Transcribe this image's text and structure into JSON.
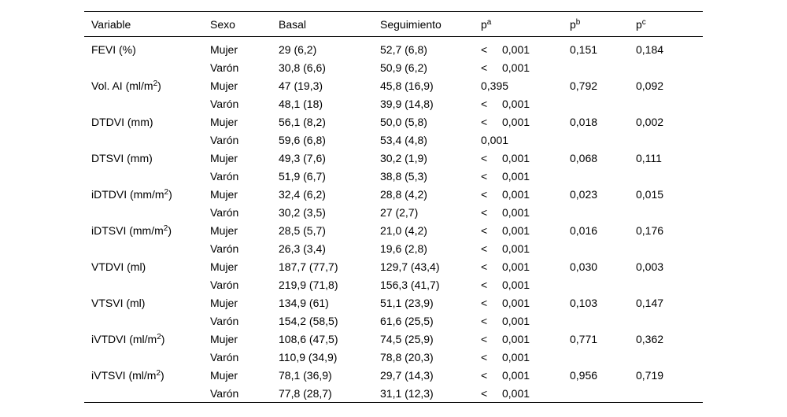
{
  "headers": {
    "variable": "Variable",
    "sexo": "Sexo",
    "basal": "Basal",
    "seguimiento": "Seguimiento",
    "pa_base": "p",
    "pa_sup": "a",
    "pb_base": "p",
    "pb_sup": "b",
    "pc_base": "p",
    "pc_sup": "c"
  },
  "rows": [
    {
      "variable": "FEVI (%)",
      "var_sup": "",
      "var_suffix": "",
      "sexo": "Mujer",
      "basal": "29 (6,2)",
      "seguimiento": "52,7 (6,8)",
      "pa_lt": "<",
      "pa": "0,001",
      "pb": "0,151",
      "pc": "0,184"
    },
    {
      "variable": "",
      "var_sup": "",
      "var_suffix": "",
      "sexo": "Varón",
      "basal": "30,8 (6,6)",
      "seguimiento": "50,9 (6,2)",
      "pa_lt": "<",
      "pa": "0,001",
      "pb": "",
      "pc": ""
    },
    {
      "variable": "Vol. AI (ml/m",
      "var_sup": "2",
      "var_suffix": ")",
      "sexo": "Mujer",
      "basal": "47 (19,3)",
      "seguimiento": "45,8 (16,9)",
      "pa_lt": "",
      "pa": "0,395",
      "pb": "0,792",
      "pc": "0,092"
    },
    {
      "variable": "",
      "var_sup": "",
      "var_suffix": "",
      "sexo": "Varón",
      "basal": "48,1 (18)",
      "seguimiento": "39,9 (14,8)",
      "pa_lt": "<",
      "pa": "0,001",
      "pb": "",
      "pc": ""
    },
    {
      "variable": "DTDVI (mm)",
      "var_sup": "",
      "var_suffix": "",
      "sexo": "Mujer",
      "basal": "56,1 (8,2)",
      "seguimiento": "50,0 (5,8)",
      "pa_lt": "<",
      "pa": "0,001",
      "pb": "0,018",
      "pc": "0,002"
    },
    {
      "variable": "",
      "var_sup": "",
      "var_suffix": "",
      "sexo": "Varón",
      "basal": "59,6 (6,8)",
      "seguimiento": "53,4 (4,8)",
      "pa_lt": "",
      "pa": "0,001",
      "pb": "",
      "pc": ""
    },
    {
      "variable": "DTSVI (mm)",
      "var_sup": "",
      "var_suffix": "",
      "sexo": "Mujer",
      "basal": "49,3 (7,6)",
      "seguimiento": "30,2 (1,9)",
      "pa_lt": "<",
      "pa": "0,001",
      "pb": "0,068",
      "pc": "0,111"
    },
    {
      "variable": "",
      "var_sup": "",
      "var_suffix": "",
      "sexo": "Varón",
      "basal": "51,9 (6,7)",
      "seguimiento": "38,8 (5,3)",
      "pa_lt": "<",
      "pa": "0,001",
      "pb": "",
      "pc": ""
    },
    {
      "variable": "iDTDVI (mm/m",
      "var_sup": "2",
      "var_suffix": ")",
      "sexo": "Mujer",
      "basal": "32,4 (6,2)",
      "seguimiento": "28,8 (4,2)",
      "pa_lt": "<",
      "pa": "0,001",
      "pb": "0,023",
      "pc": "0,015"
    },
    {
      "variable": "",
      "var_sup": "",
      "var_suffix": "",
      "sexo": "Varón",
      "basal": "30,2 (3,5)",
      "seguimiento": "27 (2,7)",
      "pa_lt": "<",
      "pa": "0,001",
      "pb": "",
      "pc": ""
    },
    {
      "variable": "iDTSVI (mm/m",
      "var_sup": "2",
      "var_suffix": ")",
      "sexo": "Mujer",
      "basal": "28,5 (5,7)",
      "seguimiento": "21,0 (4,2)",
      "pa_lt": "<",
      "pa": "0,001",
      "pb": "0,016",
      "pc": "0,176"
    },
    {
      "variable": "",
      "var_sup": "",
      "var_suffix": "",
      "sexo": "Varón",
      "basal": "26,3 (3,4)",
      "seguimiento": "19,6 (2,8)",
      "pa_lt": "<",
      "pa": "0,001",
      "pb": "",
      "pc": ""
    },
    {
      "variable": "VTDVI (ml)",
      "var_sup": "",
      "var_suffix": "",
      "sexo": "Mujer",
      "basal": "187,7 (77,7)",
      "seguimiento": "129,7 (43,4)",
      "pa_lt": "<",
      "pa": "0,001",
      "pb": "0,030",
      "pc": "0,003"
    },
    {
      "variable": "",
      "var_sup": "",
      "var_suffix": "",
      "sexo": "Varón",
      "basal": "219,9 (71,8)",
      "seguimiento": "156,3 (41,7)",
      "pa_lt": "<",
      "pa": "0,001",
      "pb": "",
      "pc": ""
    },
    {
      "variable": "VTSVI (ml)",
      "var_sup": "",
      "var_suffix": "",
      "sexo": "Mujer",
      "basal": "134,9 (61)",
      "seguimiento": "51,1 (23,9)",
      "pa_lt": "<",
      "pa": "0,001",
      "pb": "0,103",
      "pc": "0,147"
    },
    {
      "variable": "",
      "var_sup": "",
      "var_suffix": "",
      "sexo": "Varón",
      "basal": "154,2 (58,5)",
      "seguimiento": "61,6 (25,5)",
      "pa_lt": "<",
      "pa": "0,001",
      "pb": "",
      "pc": ""
    },
    {
      "variable": "iVTDVI (ml/m",
      "var_sup": "2",
      "var_suffix": ")",
      "sexo": "Mujer",
      "basal": "108,6 (47,5)",
      "seguimiento": "74,5 (25,9)",
      "pa_lt": "<",
      "pa": "0,001",
      "pb": "0,771",
      "pc": "0,362"
    },
    {
      "variable": "",
      "var_sup": "",
      "var_suffix": "",
      "sexo": "Varón",
      "basal": "110,9 (34,9)",
      "seguimiento": "78,8 (20,3)",
      "pa_lt": "<",
      "pa": "0,001",
      "pb": "",
      "pc": ""
    },
    {
      "variable": "iVTSVI (ml/m",
      "var_sup": "2",
      "var_suffix": ")",
      "sexo": "Mujer",
      "basal": "78,1 (36,9)",
      "seguimiento": "29,7 (14,3)",
      "pa_lt": "<",
      "pa": "0,001",
      "pb": "0,956",
      "pc": "0,719"
    },
    {
      "variable": "",
      "var_sup": "",
      "var_suffix": "",
      "sexo": "Varón",
      "basal": "77,8 (28,7)",
      "seguimiento": "31,1 (12,3)",
      "pa_lt": "<",
      "pa": "0,001",
      "pb": "",
      "pc": ""
    }
  ]
}
